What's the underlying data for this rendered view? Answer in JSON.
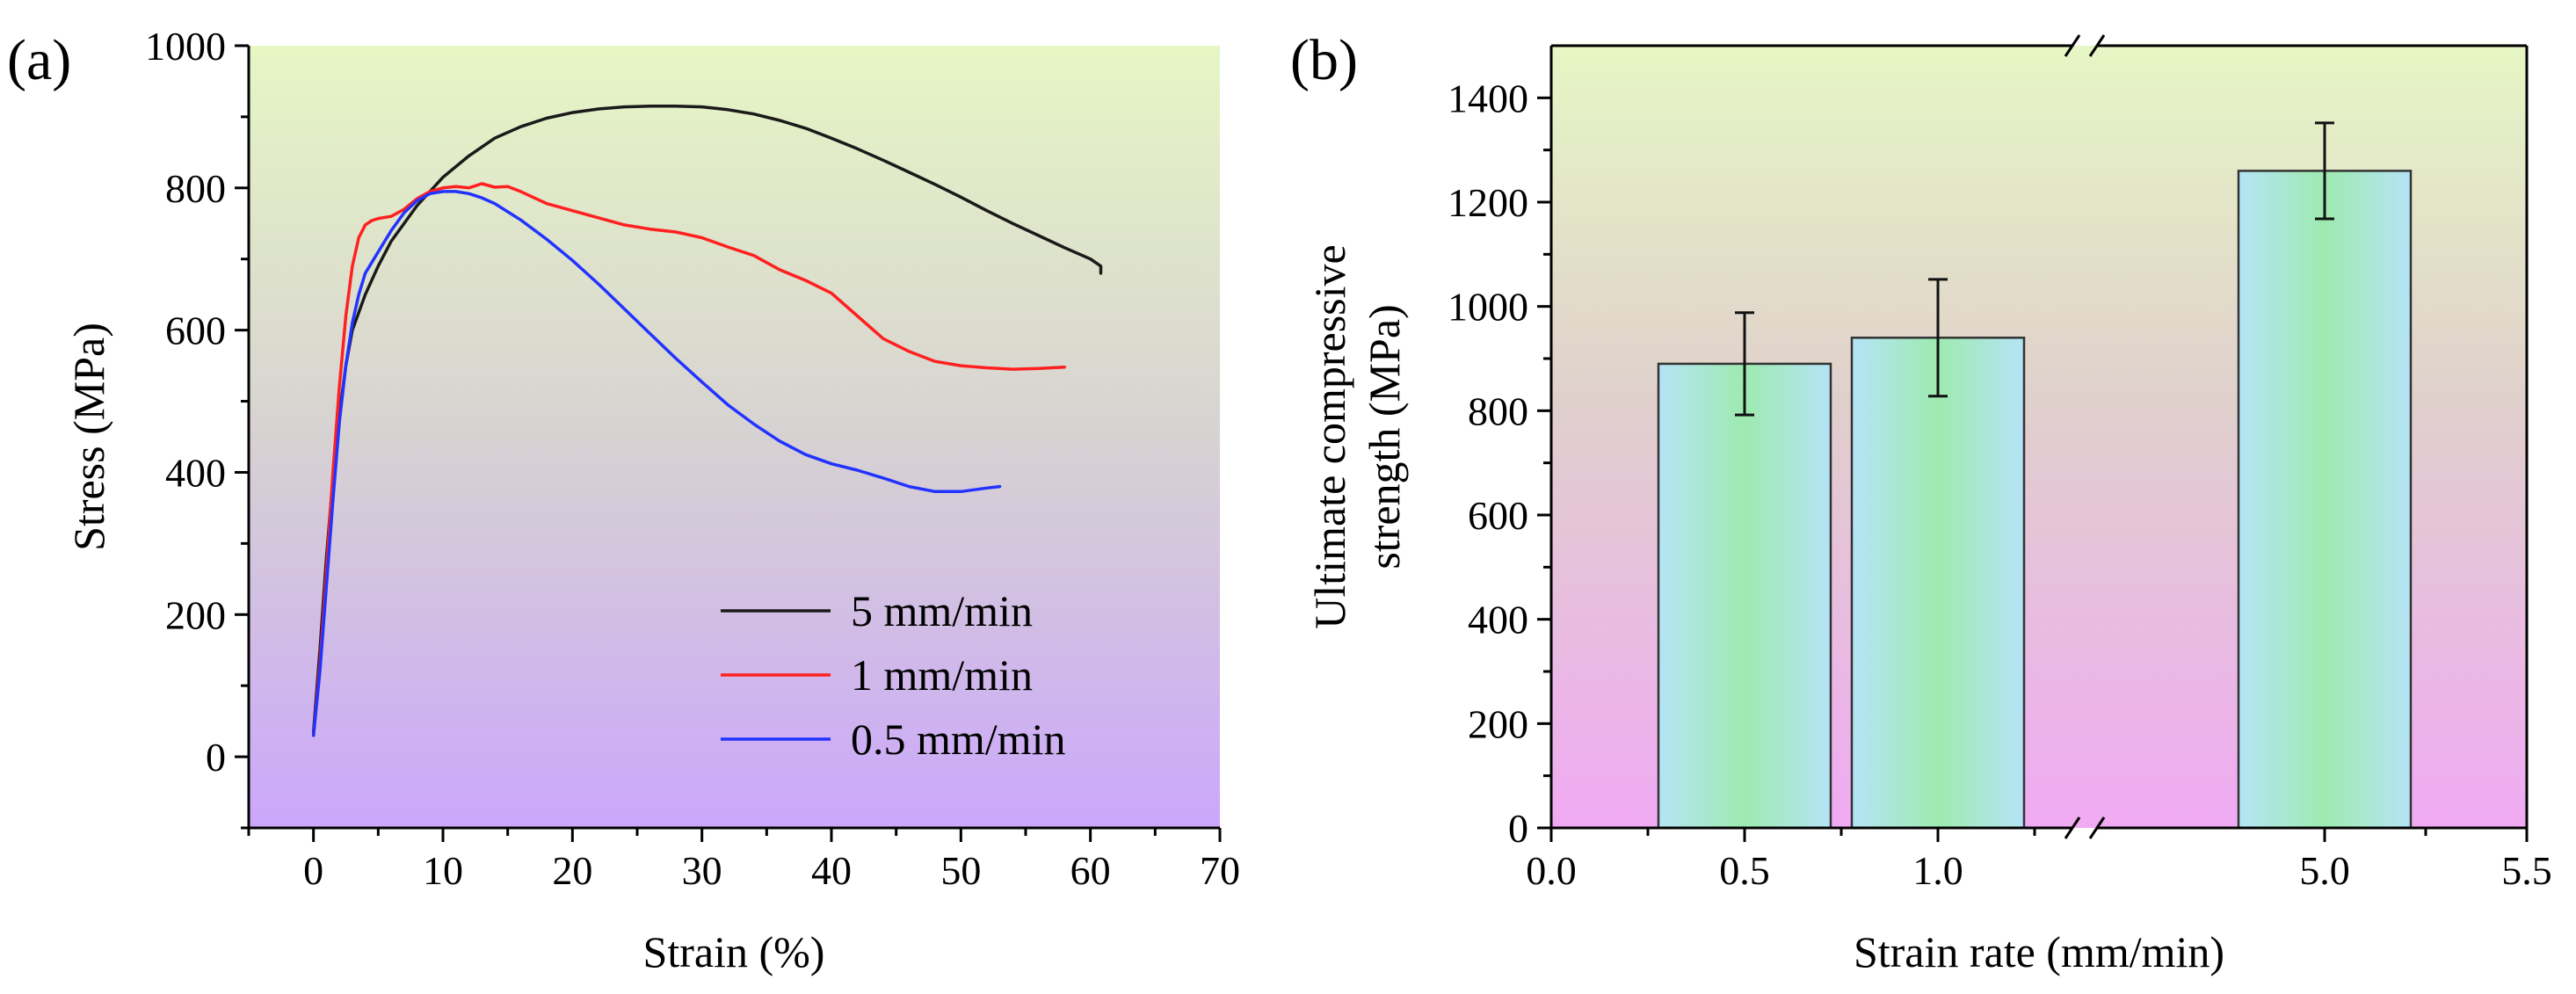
{
  "chart_data": [
    {
      "panel": "(a)",
      "type": "line",
      "xlabel": "Strain (%)",
      "ylabel": "Stress (MPa)",
      "xlim": [
        -5,
        70
      ],
      "ylim": [
        -100,
        1000
      ],
      "xticks": [
        0,
        10,
        20,
        30,
        40,
        50,
        60,
        70
      ],
      "yticks": [
        0,
        200,
        400,
        600,
        800,
        1000
      ],
      "background": "vertical gradient from light green (#e6f6c4) at top through grey (#d7d2d2) to purple (#cba7fb) at bottom",
      "legend_position": "bottom-right",
      "series": [
        {
          "name": "5 mm/min",
          "color": "#1a1a1a",
          "x": [
            0,
            0.5,
            1,
            1.5,
            2,
            2.5,
            3,
            4,
            5,
            6,
            8,
            10,
            12,
            14,
            16,
            18,
            20,
            22,
            24,
            26,
            28,
            30,
            32,
            34,
            36,
            38,
            40,
            42,
            44,
            46,
            48,
            50,
            52,
            54,
            56,
            58,
            60,
            60.8,
            60.8
          ],
          "y": [
            35,
            150,
            280,
            390,
            480,
            550,
            600,
            650,
            690,
            725,
            775,
            815,
            845,
            870,
            886,
            898,
            906,
            911,
            914,
            915,
            915,
            914,
            910,
            904,
            895,
            884,
            870,
            855,
            839,
            822,
            805,
            787,
            768,
            750,
            733,
            716,
            700,
            690,
            680
          ]
        },
        {
          "name": "1 mm/min",
          "color": "#ff2020",
          "x": [
            0,
            0.5,
            1,
            1.5,
            2,
            2.5,
            3,
            3.5,
            4,
            4.5,
            5,
            6,
            7,
            8,
            9,
            10,
            11,
            12,
            13,
            14,
            15,
            16,
            18,
            20,
            22,
            24,
            26,
            28,
            30,
            32,
            34,
            36,
            38,
            40,
            42,
            44,
            46,
            48,
            50,
            52,
            54,
            56,
            58
          ],
          "y": [
            30,
            130,
            260,
            400,
            520,
            620,
            690,
            730,
            748,
            754,
            757,
            760,
            770,
            785,
            795,
            800,
            802,
            800,
            806,
            801,
            802,
            795,
            778,
            768,
            758,
            748,
            742,
            738,
            730,
            717,
            705,
            685,
            670,
            652,
            620,
            588,
            570,
            556,
            550,
            547,
            545,
            546,
            548
          ]
        },
        {
          "name": "0.5 mm/min",
          "color": "#2233ff",
          "x": [
            0,
            0.5,
            1,
            1.5,
            2,
            2.5,
            3,
            3.5,
            4,
            5,
            6,
            7,
            8,
            9,
            10,
            11,
            12,
            13,
            14,
            16,
            18,
            20,
            22,
            24,
            26,
            28,
            30,
            32,
            34,
            36,
            38,
            40,
            42,
            44,
            46,
            48,
            50,
            52,
            53
          ],
          "y": [
            30,
            120,
            240,
            360,
            470,
            550,
            610,
            650,
            680,
            710,
            740,
            765,
            782,
            792,
            795,
            795,
            792,
            786,
            778,
            755,
            728,
            698,
            665,
            630,
            595,
            560,
            527,
            495,
            468,
            444,
            425,
            412,
            403,
            392,
            380,
            373,
            373,
            378,
            380
          ]
        }
      ]
    },
    {
      "panel": "(b)",
      "type": "bar",
      "xlabel": "Strain rate (mm/min)",
      "ylabel": [
        "Ultimate compressive",
        "strength (MPa)"
      ],
      "xlim": [
        0.0,
        5.5
      ],
      "ylim": [
        0,
        1500
      ],
      "xticks": [
        0.0,
        0.5,
        1.0,
        5.0,
        5.5
      ],
      "xtick_labels": [
        "0.0",
        "0.5",
        "1.0",
        "5.0",
        "5.5"
      ],
      "yticks": [
        0,
        200,
        400,
        600,
        800,
        1000,
        1200,
        1400
      ],
      "axis_break": "between 1.0 and 5.0",
      "background": "vertical gradient from light green (#e6f6c4) at top to pink/magenta (#f0aaf3) at bottom",
      "bar_fill": "horizontal gradient light blue (#b5e4f6) to green (#9eeab0) to light blue",
      "categories": [
        "0.5",
        "1.0",
        "5.0"
      ],
      "values": [
        890,
        940,
        1260
      ],
      "error": [
        98,
        112,
        92
      ]
    }
  ]
}
